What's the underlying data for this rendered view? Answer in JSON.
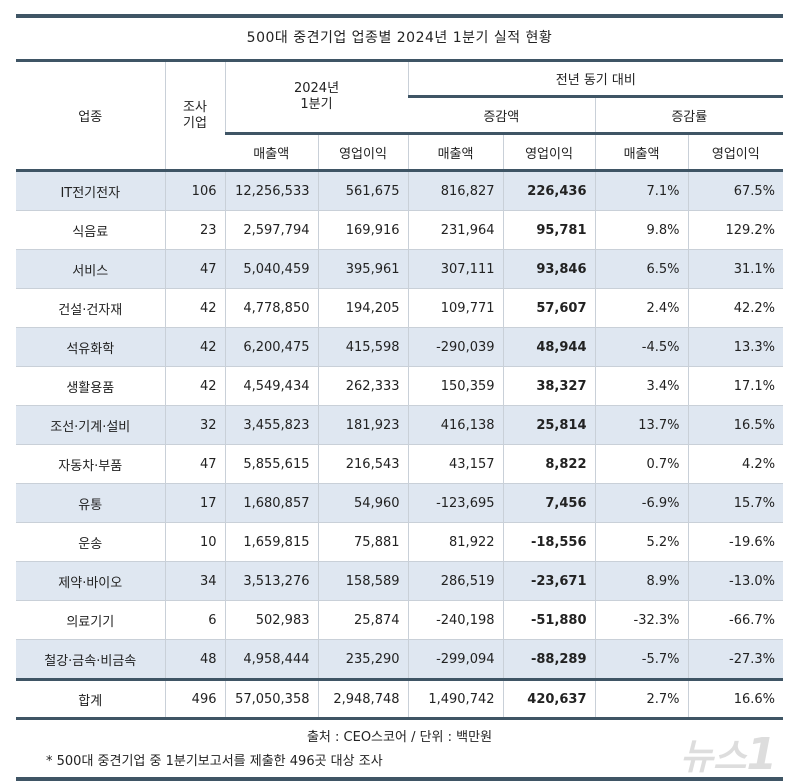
{
  "title": "500대 중견기업 업종별 2024년 1분기 실적 현황",
  "headers": {
    "industry": "업종",
    "companies": "조사\n기업",
    "q1": "2024년\n1분기",
    "yoy": "전년 동기 대비",
    "change_amount": "증감액",
    "change_rate": "증감률",
    "sales": "매출액",
    "op_profit": "영업이익"
  },
  "rows": [
    {
      "industry": "IT전기전자",
      "companies": "106",
      "sales": "12,256,533",
      "op": "561,675",
      "d_sales": "816,827",
      "d_op": "226,436",
      "r_sales": "7.1%",
      "r_op": "67.5%"
    },
    {
      "industry": "식음료",
      "companies": "23",
      "sales": "2,597,794",
      "op": "169,916",
      "d_sales": "231,964",
      "d_op": "95,781",
      "r_sales": "9.8%",
      "r_op": "129.2%"
    },
    {
      "industry": "서비스",
      "companies": "47",
      "sales": "5,040,459",
      "op": "395,961",
      "d_sales": "307,111",
      "d_op": "93,846",
      "r_sales": "6.5%",
      "r_op": "31.1%"
    },
    {
      "industry": "건설·건자재",
      "companies": "42",
      "sales": "4,778,850",
      "op": "194,205",
      "d_sales": "109,771",
      "d_op": "57,607",
      "r_sales": "2.4%",
      "r_op": "42.2%"
    },
    {
      "industry": "석유화학",
      "companies": "42",
      "sales": "6,200,475",
      "op": "415,598",
      "d_sales": "-290,039",
      "d_op": "48,944",
      "r_sales": "-4.5%",
      "r_op": "13.3%"
    },
    {
      "industry": "생활용품",
      "companies": "42",
      "sales": "4,549,434",
      "op": "262,333",
      "d_sales": "150,359",
      "d_op": "38,327",
      "r_sales": "3.4%",
      "r_op": "17.1%"
    },
    {
      "industry": "조선·기계·설비",
      "companies": "32",
      "sales": "3,455,823",
      "op": "181,923",
      "d_sales": "416,138",
      "d_op": "25,814",
      "r_sales": "13.7%",
      "r_op": "16.5%"
    },
    {
      "industry": "자동차·부품",
      "companies": "47",
      "sales": "5,855,615",
      "op": "216,543",
      "d_sales": "43,157",
      "d_op": "8,822",
      "r_sales": "0.7%",
      "r_op": "4.2%"
    },
    {
      "industry": "유통",
      "companies": "17",
      "sales": "1,680,857",
      "op": "54,960",
      "d_sales": "-123,695",
      "d_op": "7,456",
      "r_sales": "-6.9%",
      "r_op": "15.7%"
    },
    {
      "industry": "운송",
      "companies": "10",
      "sales": "1,659,815",
      "op": "75,881",
      "d_sales": "81,922",
      "d_op": "-18,556",
      "r_sales": "5.2%",
      "r_op": "-19.6%"
    },
    {
      "industry": "제약·바이오",
      "companies": "34",
      "sales": "3,513,276",
      "op": "158,589",
      "d_sales": "286,519",
      "d_op": "-23,671",
      "r_sales": "8.9%",
      "r_op": "-13.0%"
    },
    {
      "industry": "의료기기",
      "companies": "6",
      "sales": "502,983",
      "op": "25,874",
      "d_sales": "-240,198",
      "d_op": "-51,880",
      "r_sales": "-32.3%",
      "r_op": "-66.7%"
    },
    {
      "industry": "철강·금속·비금속",
      "companies": "48",
      "sales": "4,958,444",
      "op": "235,290",
      "d_sales": "-299,094",
      "d_op": "-88,289",
      "r_sales": "-5.7%",
      "r_op": "-27.3%"
    }
  ],
  "total": {
    "industry": "합계",
    "companies": "496",
    "sales": "57,050,358",
    "op": "2,948,748",
    "d_sales": "1,490,742",
    "d_op": "420,637",
    "r_sales": "2.7%",
    "r_op": "16.6%"
  },
  "source": "출처 : CEO스코어 / 단위 : 백만원",
  "note": "* 500대 중견기업 중 1분기보고서를 제출한 496곳 대상 조사",
  "watermark": "뉴스1"
}
